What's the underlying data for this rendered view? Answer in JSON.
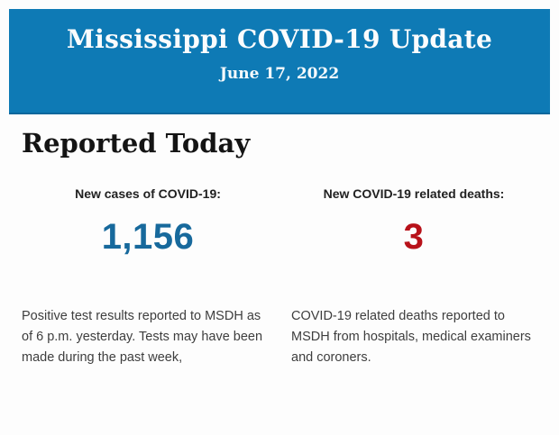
{
  "banner": {
    "title": "Mississippi COVID-19 Update",
    "date": "June 17, 2022",
    "bg_color": "#0e7ab5",
    "text_color": "#fbfcfd"
  },
  "section": {
    "heading": "Reported Today"
  },
  "stats": {
    "cases": {
      "label": "New cases of COVID-19:",
      "value": "1,156",
      "value_color": "#17699c",
      "description": "Positive test results reported to MSDH as\nof 6 p.m. yesterday. Tests may have been\nmade during the past week,"
    },
    "deaths": {
      "label": "New COVID-19 related deaths:",
      "value": "3",
      "value_color": "#b8121a",
      "description": "COVID-19 related deaths reported to\nMSDH from hospitals, medical examiners\nand coroners."
    }
  }
}
